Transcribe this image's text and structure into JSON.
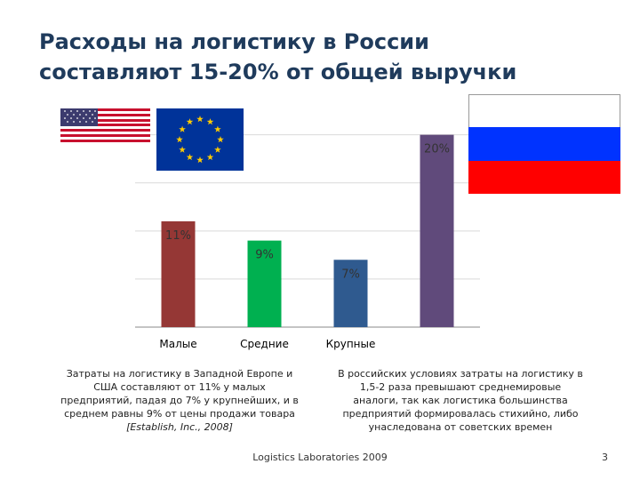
{
  "title": {
    "line1": "Расходы на логистику в России",
    "line2": "составляют 15-20% от общей выручки"
  },
  "chart_data": {
    "type": "bar",
    "categories": [
      "Малые",
      "Средние",
      "Крупные",
      ""
    ],
    "values": [
      11,
      9,
      7,
      20
    ],
    "data_labels": [
      "11%",
      "9%",
      "7%",
      "20%"
    ],
    "colors": [
      "#953735",
      "#00b050",
      "#2f5a8f",
      "#604a7b"
    ],
    "ylim": [
      0,
      22
    ],
    "grid": true,
    "legend": "none"
  },
  "flags": {
    "usa": "usa-flag-icon",
    "eu": "eu-flag-icon",
    "russia": "russia-flag-icon"
  },
  "notes": {
    "left_main": "Затраты на логистику  в Западной Европе и США составляют от 11% у малых предприятий, падая до 7% у крупнейших, и в среднем равны 9% от цены продажи товара ",
    "left_citation": "[Establish, Inc., 2008]",
    "right": "В российских условиях затраты на логистику в 1,5-2 раза превышают среднемировые аналоги, так как логистика большинства предприятий формировалась стихийно, либо унаследована от советских времен"
  },
  "footer": "Logistics Laboratories 2009",
  "page_number": "3"
}
